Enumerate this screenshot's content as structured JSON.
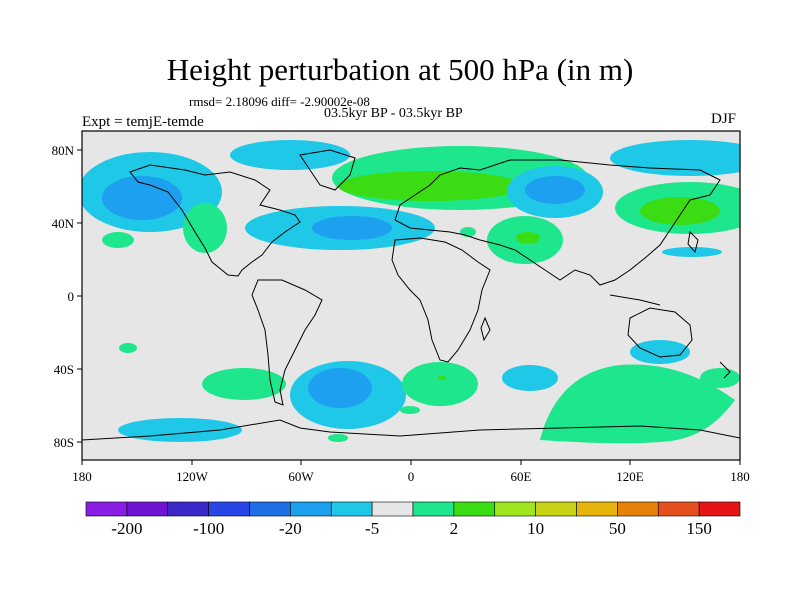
{
  "title": "Height perturbation at 500 hPa (in m)",
  "stats_line": "rmsd= 2.18096 diff= -2.90002e-08",
  "period": "03.5kyr BP - 03.5kyr BP",
  "expt_label": "Expt = temjE-temde",
  "season": "DJF",
  "lon_ticks": [
    "180",
    "120W",
    "60W",
    "0",
    "60E",
    "120E",
    "180"
  ],
  "lat_ticks": [
    "80N",
    "40N",
    "0",
    "40S",
    "80S"
  ],
  "colorbar": {
    "colors": [
      "#8a1ee6",
      "#6e14d2",
      "#3c28c8",
      "#2846e6",
      "#1e6ee6",
      "#1ea0f0",
      "#1ec8e6",
      "#e6e6e6",
      "#1ee68c",
      "#3cdc14",
      "#a0e61e",
      "#c8d214",
      "#e6b40a",
      "#e6820a",
      "#e6501e",
      "#e61414"
    ],
    "labels": [
      "-200",
      "-100",
      "-20",
      "-5",
      "2",
      "10",
      "50",
      "150"
    ]
  },
  "map_background": "#e6e6e6"
}
